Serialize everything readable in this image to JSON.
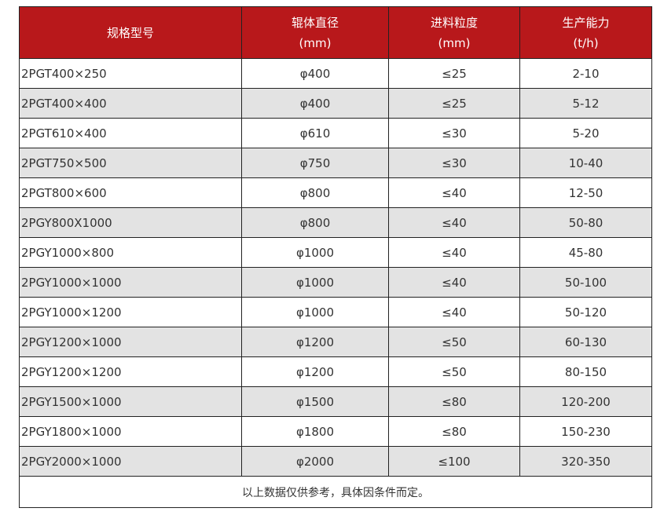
{
  "colors": {
    "header_bg": "#b8181b",
    "alt_row_bg": "#e3e3e3"
  },
  "headers": [
    {
      "title": "规格型号",
      "unit": ""
    },
    {
      "title": "辊体直径",
      "unit": "(mm)"
    },
    {
      "title": "进料粒度",
      "unit": "(mm)"
    },
    {
      "title": "生产能力",
      "unit": "(t/h)"
    }
  ],
  "rows": [
    [
      "2PGT400×250",
      "φ400",
      "≤25",
      "2-10"
    ],
    [
      "2PGT400×400",
      "φ400",
      "≤25",
      "5-12"
    ],
    [
      "2PGT610×400",
      "φ610",
      "≤30",
      "5-20"
    ],
    [
      "2PGT750×500",
      "φ750",
      "≤30",
      "10-40"
    ],
    [
      "2PGT800×600",
      "φ800",
      "≤40",
      "12-50"
    ],
    [
      "2PGY800X1000",
      "φ800",
      "≤40",
      "50-80"
    ],
    [
      "2PGY1000×800",
      "φ1000",
      "≤40",
      "45-80"
    ],
    [
      "2PGY1000×1000",
      "φ1000",
      "≤40",
      "50-100"
    ],
    [
      "2PGY1000×1200",
      "φ1000",
      "≤40",
      "50-120"
    ],
    [
      "2PGY1200×1000",
      "φ1200",
      "≤50",
      "60-130"
    ],
    [
      "2PGY1200×1200",
      "φ1200",
      "≤50",
      "80-150"
    ],
    [
      "2PGY1500×1000",
      "φ1500",
      "≤80",
      "120-200"
    ],
    [
      "2PGY1800×1000",
      "φ1800",
      "≤80",
      "150-230"
    ],
    [
      "2PGY2000×1000",
      "φ2000",
      "≤100",
      "320-350"
    ]
  ],
  "note": "以上数据仅供参考，具体因条件而定。"
}
